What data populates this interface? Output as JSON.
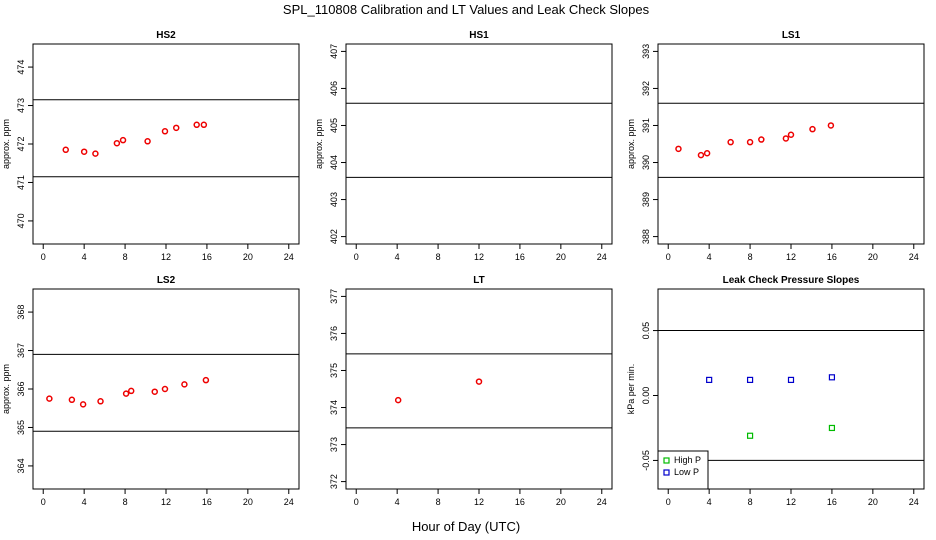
{
  "figure": {
    "title": "SPL_110808  Calibration and LT Values and Leak Check Slopes",
    "xlabel": "Hour of Day (UTC)"
  },
  "colors": {
    "red": "#ee0000",
    "blue": "#0000cc",
    "green": "#00bb00",
    "line": "#000000"
  },
  "chart_data": [
    {
      "type": "scatter",
      "title": "HS2",
      "ylabel": "approx. ppm",
      "xlim": [
        -1,
        25
      ],
      "ylim": [
        469.4,
        474.6
      ],
      "xticks": [
        0,
        4,
        8,
        12,
        16,
        20,
        24
      ],
      "yticks": [
        470,
        471,
        472,
        473,
        474
      ],
      "hlines": [
        471.15,
        473.15
      ],
      "series": [
        {
          "color": "red",
          "marker": "circle",
          "x": [
            2.2,
            4.0,
            5.1,
            7.2,
            7.8,
            10.2,
            11.9,
            13.0,
            15.0,
            15.7
          ],
          "y": [
            471.85,
            471.8,
            471.75,
            472.02,
            472.1,
            472.07,
            472.33,
            472.42,
            472.5,
            472.5
          ]
        }
      ]
    },
    {
      "type": "scatter",
      "title": "HS1",
      "ylabel": "approx. ppm",
      "xlim": [
        -1,
        25
      ],
      "ylim": [
        401.8,
        407.2
      ],
      "xticks": [
        0,
        4,
        8,
        12,
        16,
        20,
        24
      ],
      "yticks": [
        402,
        403,
        404,
        405,
        406,
        407
      ],
      "hlines": [
        403.6,
        405.6
      ],
      "series": []
    },
    {
      "type": "scatter",
      "title": "LS1",
      "ylabel": "approx. ppm",
      "xlim": [
        -1,
        25
      ],
      "ylim": [
        387.8,
        393.2
      ],
      "xticks": [
        0,
        4,
        8,
        12,
        16,
        20,
        24
      ],
      "yticks": [
        388,
        389,
        390,
        391,
        392,
        393
      ],
      "hlines": [
        389.6,
        391.6
      ],
      "series": [
        {
          "color": "red",
          "marker": "circle",
          "x": [
            1.0,
            3.2,
            3.8,
            6.1,
            8.0,
            9.1,
            11.5,
            12.0,
            14.1,
            15.9
          ],
          "y": [
            390.37,
            390.2,
            390.25,
            390.55,
            390.55,
            390.62,
            390.65,
            390.75,
            390.9,
            391.0
          ]
        }
      ]
    },
    {
      "type": "scatter",
      "title": "LS2",
      "ylabel": "approx. ppm",
      "xlim": [
        -1,
        25
      ],
      "ylim": [
        363.4,
        368.6
      ],
      "xticks": [
        0,
        4,
        8,
        12,
        16,
        20,
        24
      ],
      "yticks": [
        364,
        365,
        366,
        367,
        368
      ],
      "hlines": [
        364.9,
        366.9
      ],
      "series": [
        {
          "color": "red",
          "marker": "circle",
          "x": [
            0.6,
            2.8,
            3.9,
            5.6,
            8.1,
            8.6,
            10.9,
            11.9,
            13.8,
            15.9
          ],
          "y": [
            365.75,
            365.72,
            365.6,
            365.68,
            365.88,
            365.95,
            365.93,
            366.0,
            366.12,
            366.23
          ]
        }
      ]
    },
    {
      "type": "scatter",
      "title": "LT",
      "ylabel": "",
      "xlim": [
        -1,
        25
      ],
      "ylim": [
        371.8,
        377.2
      ],
      "xticks": [
        0,
        4,
        8,
        12,
        16,
        20,
        24
      ],
      "yticks": [
        372,
        373,
        374,
        375,
        376,
        377
      ],
      "hlines": [
        373.45,
        375.45
      ],
      "series": [
        {
          "color": "red",
          "marker": "circle",
          "x": [
            4.1,
            12.0
          ],
          "y": [
            374.2,
            374.7
          ]
        }
      ]
    },
    {
      "type": "scatter",
      "title": "Leak Check Pressure Slopes",
      "ylabel": "kPa per min.",
      "xlim": [
        -1,
        25
      ],
      "ylim": [
        -0.072,
        0.082
      ],
      "xticks": [
        0,
        4,
        8,
        12,
        16,
        20,
        24
      ],
      "yticks": [
        -0.05,
        0.0,
        0.05
      ],
      "ytick_labels": [
        "-0.05",
        "0.00",
        "0.05"
      ],
      "hlines": [
        -0.05,
        0.05
      ],
      "legend": {
        "position": "bottom-left",
        "entries": [
          {
            "label": "High P",
            "color": "green"
          },
          {
            "label": "Low P",
            "color": "blue"
          }
        ]
      },
      "series": [
        {
          "name": "High P",
          "color": "green",
          "marker": "square",
          "x": [
            8.0,
            16.0
          ],
          "y": [
            -0.031,
            -0.025
          ]
        },
        {
          "name": "Low P",
          "color": "blue",
          "marker": "square",
          "x": [
            4.0,
            8.0,
            12.0,
            16.0
          ],
          "y": [
            0.012,
            0.012,
            0.012,
            0.014
          ]
        }
      ]
    }
  ]
}
